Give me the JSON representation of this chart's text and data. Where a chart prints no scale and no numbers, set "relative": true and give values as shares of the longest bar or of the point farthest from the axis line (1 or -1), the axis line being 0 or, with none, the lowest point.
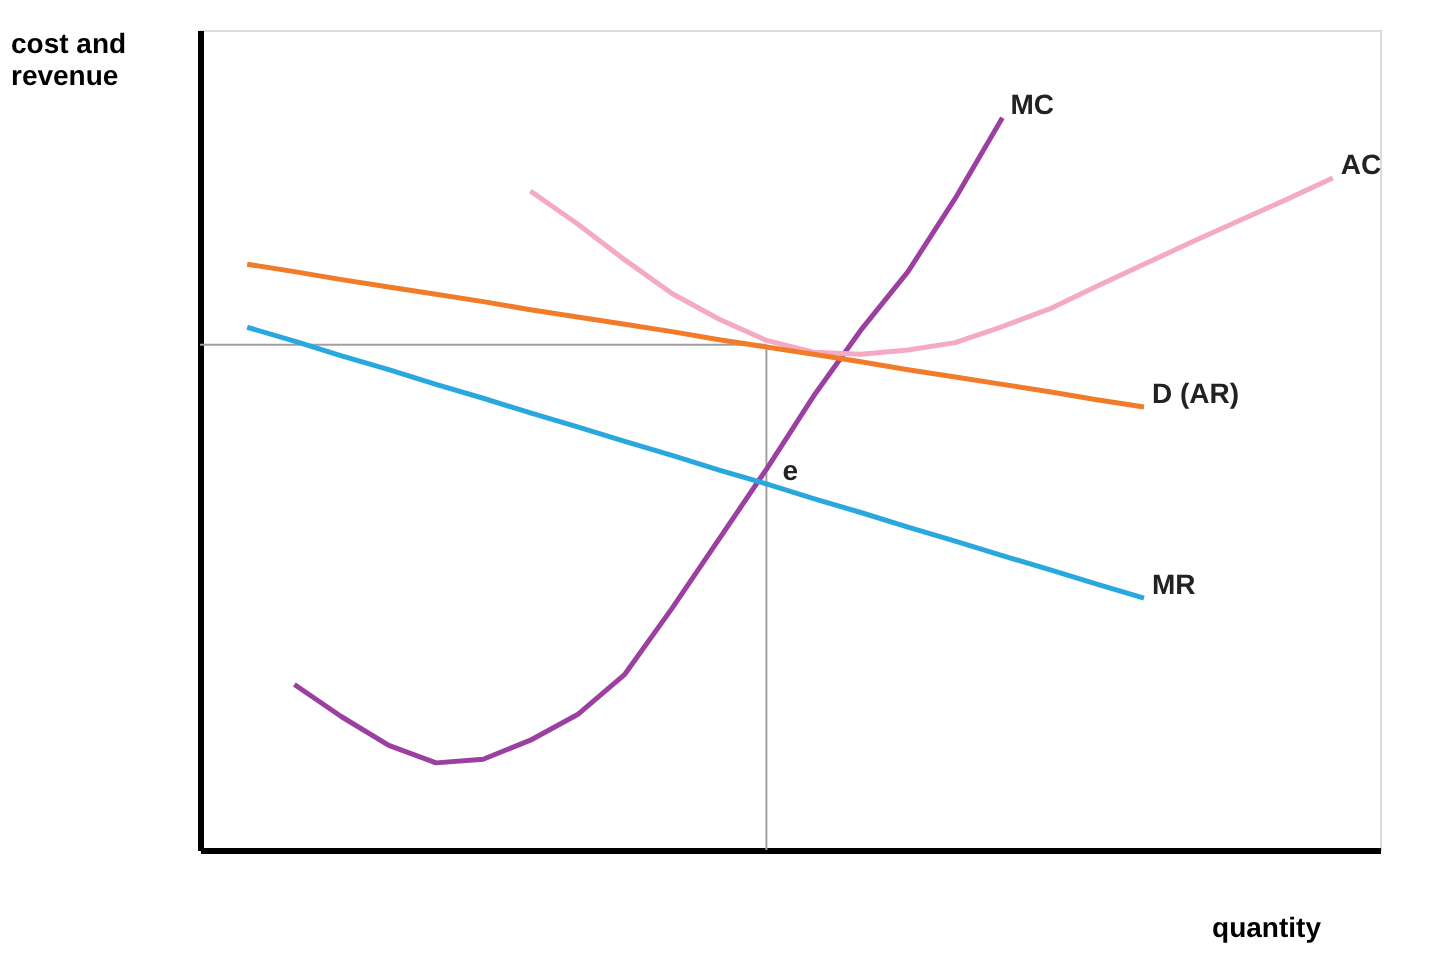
{
  "chart_data": {
    "type": "line",
    "relative": true,
    "xlabel": "quantity",
    "ylabel": "cost and revenue",
    "marker": "none",
    "line_style": "solid",
    "categories": [
      null,
      null,
      null,
      null,
      null,
      null,
      null,
      null,
      null,
      null,
      null,
      null,
      null,
      null,
      null,
      null,
      null,
      null,
      null,
      null,
      null,
      null,
      null,
      null,
      null
    ],
    "series": [
      {
        "name": "MC",
        "color": "#9b3fa0",
        "values": [
          null,
          null,
          0.226,
          0.182,
          0.143,
          0.119,
          0.124,
          0.15,
          0.185,
          0.24,
          0.33,
          0.425,
          0.52,
          0.62,
          0.71,
          0.79,
          0.89,
          1.0,
          null,
          null,
          null,
          null,
          null,
          null,
          null
        ]
      },
      {
        "name": "AC",
        "color": "#f4a9c4",
        "values": [
          null,
          null,
          null,
          null,
          null,
          null,
          null,
          0.9,
          0.855,
          0.806,
          0.76,
          0.725,
          0.696,
          0.68,
          0.677,
          0.683,
          0.693,
          0.715,
          0.739,
          0.77,
          0.8,
          0.83,
          0.859,
          0.888,
          0.918
        ]
      },
      {
        "name": "D (AR)",
        "color": "#f07c2a",
        "values": [
          null,
          0.8,
          0.79,
          0.779,
          0.769,
          0.759,
          0.749,
          0.738,
          0.728,
          0.718,
          0.708,
          0.697,
          0.687,
          0.677,
          0.667,
          0.656,
          0.646,
          0.636,
          0.626,
          0.615,
          0.605,
          null,
          null,
          null,
          null
        ]
      },
      {
        "name": "MR",
        "color": "#29a8e0",
        "values": [
          null,
          0.714,
          0.695,
          0.675,
          0.656,
          0.636,
          0.617,
          0.597,
          0.578,
          0.558,
          0.539,
          0.519,
          0.5,
          0.48,
          0.461,
          0.441,
          0.422,
          0.402,
          0.383,
          0.363,
          0.344,
          null,
          null,
          null,
          null
        ]
      }
    ],
    "ref_lines": [
      {
        "axis": "y",
        "value": 0.69,
        "color": "#a0a0a0"
      }
    ],
    "annotations": [
      {
        "text": "e",
        "y": 0.5
      }
    ]
  }
}
